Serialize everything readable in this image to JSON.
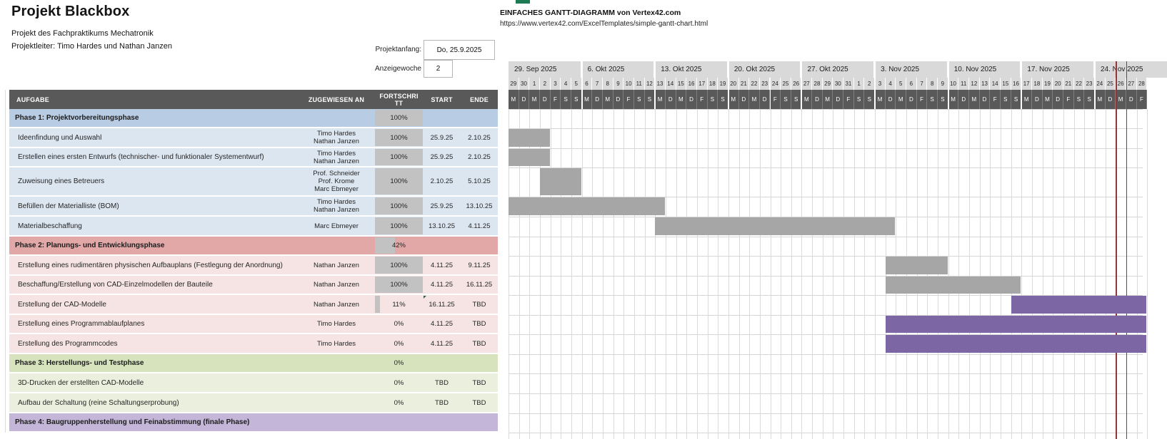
{
  "header": {
    "title": "Projekt Blackbox",
    "subtitle1": "Projekt des Fachpraktikums Mechatronik",
    "subtitle2": "Projektleiter: Timo Hardes und Nathan Janzen"
  },
  "attribution": {
    "line1": "EINFACHES GANTT-DIAGRAMM von Vertex42.com",
    "line2": "https://www.vertex42.com/ExcelTemplates/simple-gantt-chart.html"
  },
  "controls": {
    "project_start_label": "Projektanfang:",
    "project_start_value": "Do, 25.9.2025",
    "display_week_label": "Anzeigewoche",
    "display_week_value": "2"
  },
  "table": {
    "headers": {
      "task": "AUFGABE",
      "assigned": "ZUGEWIESEN AN",
      "progress": "FORTSCHRITT",
      "start": "START",
      "ende": "ENDE"
    }
  },
  "colors": {
    "header_dark": "#595959",
    "header_light": "#d9d9d9",
    "progress_fill": "#c2c2c2",
    "today_line": "#943634",
    "bar_gray": "#a6a6a6",
    "bar_purple": "#7c66a3",
    "sections": {
      "1": {
        "head": "#b8cce4",
        "row": "#dce6f1"
      },
      "2": {
        "head": "#e2a7a7",
        "row": "#f5e4e3"
      },
      "3": {
        "head": "#d6e3bc",
        "row": "#eaf0dd"
      },
      "4": {
        "head": "#c3b6d8",
        "row": "#e4dfec"
      }
    }
  },
  "chart_data": {
    "type": "bar",
    "subtype": "gantt",
    "title": "Projekt Blackbox",
    "x_axis": {
      "weeks": [
        "29. Sep 2025",
        "6. Okt 2025",
        "13. Okt 2025",
        "20. Okt 2025",
        "27. Okt 2025",
        "3. Nov 2025",
        "10. Nov 2025",
        "17. Nov 2025",
        "24. Nov 2025"
      ],
      "day_numbers": [
        29,
        30,
        1,
        2,
        3,
        4,
        5,
        6,
        7,
        8,
        9,
        10,
        11,
        12,
        13,
        14,
        15,
        16,
        17,
        18,
        19,
        20,
        21,
        22,
        23,
        24,
        25,
        26,
        27,
        28,
        29,
        30,
        31,
        1,
        2,
        3,
        4,
        5,
        6,
        7,
        8,
        9,
        10,
        11,
        12,
        13,
        14,
        15,
        16,
        17,
        18,
        19,
        20,
        21,
        22,
        23,
        24,
        25,
        26,
        27,
        28
      ],
      "day_letters_pattern": [
        "M",
        "D",
        "M",
        "D",
        "F",
        "S",
        "S"
      ],
      "today_column_index": 58
    },
    "tasks": [
      {
        "kind": "phase",
        "section": "1",
        "label": "Phase 1: Projektvorbereitungsphase",
        "assigned": [],
        "progress": "100%",
        "pct": 100,
        "start": "",
        "ende": "",
        "h": 27,
        "bar": null
      },
      {
        "kind": "task",
        "section": "1",
        "label": "Ideenfindung und Auswahl",
        "assigned": [
          "Timo Hardes",
          "Nathan Janzen"
        ],
        "progress": "100%",
        "pct": 100,
        "start": "25.9.25",
        "ende": "2.10.25",
        "h": 28,
        "bar": {
          "s": 0,
          "e": 4,
          "color": "gray"
        }
      },
      {
        "kind": "task",
        "section": "1",
        "label": "Erstellen eines ersten Entwurfs (technischer- und funktionaler Systementwurf)",
        "assigned": [
          "Timo Hardes",
          "Nathan Janzen"
        ],
        "progress": "100%",
        "pct": 100,
        "start": "25.9.25",
        "ende": "2.10.25",
        "h": 27,
        "bar": {
          "s": 0,
          "e": 4,
          "color": "gray"
        }
      },
      {
        "kind": "task",
        "section": "1",
        "label": "Zuweisung eines Betreuers",
        "assigned": [
          "Prof. Schneider",
          "Prof. Krome",
          "Marc Ebmeyer"
        ],
        "progress": "100%",
        "pct": 100,
        "start": "2.10.25",
        "ende": "5.10.25",
        "h": 41,
        "bar": {
          "s": 3,
          "e": 7,
          "color": "gray"
        }
      },
      {
        "kind": "task",
        "section": "1",
        "label": "Befüllen der Materialliste (BOM)",
        "assigned": [
          "Timo Hardes",
          "Nathan Janzen"
        ],
        "progress": "100%",
        "pct": 100,
        "start": "25.9.25",
        "ende": "13.10.25",
        "h": 28,
        "bar": {
          "s": 0,
          "e": 15,
          "color": "gray"
        }
      },
      {
        "kind": "task",
        "section": "1",
        "label": "Materialbeschaffung",
        "assigned": [
          "Marc Ebmeyer"
        ],
        "progress": "100%",
        "pct": 100,
        "start": "13.10.25",
        "ende": "4.11.25",
        "h": 28,
        "bar": {
          "s": 14,
          "e": 37,
          "color": "gray"
        }
      },
      {
        "kind": "phase",
        "section": "2",
        "label": "Phase 2: Planungs- und Entwicklungsphase",
        "assigned": [],
        "progress": "42%",
        "pct": 42,
        "start": "",
        "ende": "",
        "h": 27,
        "bar": null
      },
      {
        "kind": "task",
        "section": "2",
        "label": "Erstellung eines rudimentären physischen Aufbauplans (Festlegung der  Anordnung)",
        "assigned": [
          "Nathan Janzen"
        ],
        "progress": "100%",
        "pct": 100,
        "start": "4.11.25",
        "ende": "9.11.25",
        "h": 28,
        "bar": {
          "s": 36,
          "e": 42,
          "color": "gray"
        }
      },
      {
        "kind": "task",
        "section": "2",
        "label": "Beschaffung/Erstellung von CAD-Einzelmodellen der Bauteile",
        "assigned": [
          "Nathan Janzen"
        ],
        "progress": "100%",
        "pct": 100,
        "start": "4.11.25",
        "ende": "16.11.25",
        "h": 27,
        "bar": {
          "s": 36,
          "e": 49,
          "color": "gray"
        }
      },
      {
        "kind": "task",
        "section": "2",
        "label": "Erstellung der CAD-Modelle",
        "assigned": [
          "Nathan Janzen"
        ],
        "progress": "11%",
        "pct": 11,
        "start": "16.11.25",
        "ende": "TBD",
        "h": 28,
        "flag": true,
        "bar": {
          "s": 48,
          "e": 61,
          "color": "purple"
        }
      },
      {
        "kind": "task",
        "section": "2",
        "label": "Erstellung eines Programmablaufplanes",
        "assigned": [
          "Timo Hardes"
        ],
        "progress": "0%",
        "pct": 0,
        "start": "4.11.25",
        "ende": "TBD",
        "h": 27,
        "bar": {
          "s": 36,
          "e": 61,
          "color": "purple"
        }
      },
      {
        "kind": "task",
        "section": "2",
        "label": "Erstellung des Programmcodes",
        "assigned": [
          "Timo Hardes"
        ],
        "progress": "0%",
        "pct": 0,
        "start": "4.11.25",
        "ende": "TBD",
        "h": 28,
        "bar": {
          "s": 36,
          "e": 61,
          "color": "purple"
        }
      },
      {
        "kind": "phase",
        "section": "3",
        "label": "Phase 3: Herstellungs- und Testphase",
        "assigned": [],
        "progress": "0%",
        "pct": 0,
        "start": "",
        "ende": "",
        "h": 27,
        "bar": null
      },
      {
        "kind": "task",
        "section": "3",
        "label": "3D-Drucken der erstellten CAD-Modelle",
        "assigned": [],
        "progress": "0%",
        "pct": 0,
        "start": "TBD",
        "ende": "TBD",
        "h": 28,
        "bar": null
      },
      {
        "kind": "task",
        "section": "3",
        "label": "Aufbau der Schaltung (reine Schaltungserprobung)",
        "assigned": [],
        "progress": "0%",
        "pct": 0,
        "start": "TBD",
        "ende": "TBD",
        "h": 28,
        "bar": null
      },
      {
        "kind": "phase",
        "section": "4",
        "label": "Phase 4: Baugruppenherstellung und Feinabstimmung (finale Phase)",
        "assigned": [],
        "progress": "",
        "pct": 0,
        "start": "",
        "ende": "",
        "h": 27,
        "bar": null
      }
    ]
  }
}
